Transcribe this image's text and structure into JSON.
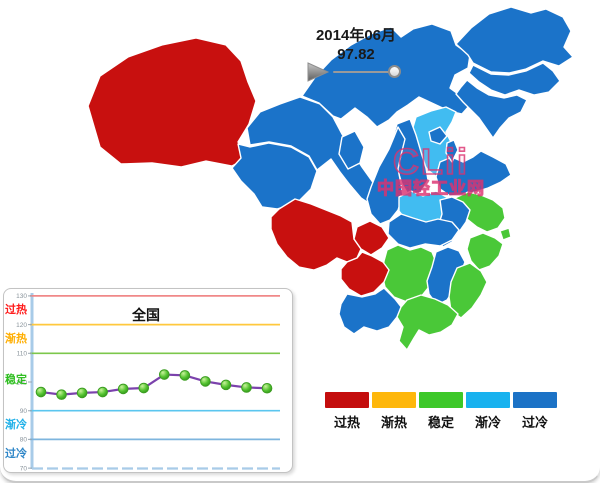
{
  "header": {
    "period": "2014年06月",
    "index_value": "97.82"
  },
  "watermark": {
    "logo": "CLii",
    "site_name": "中国轻工业网"
  },
  "legend": {
    "items": [
      {
        "label": "过热",
        "color": "#C40D0D"
      },
      {
        "label": "渐热",
        "color": "#FEB70B"
      },
      {
        "label": "稳定",
        "color": "#3DC829"
      },
      {
        "label": "渐冷",
        "color": "#18B2EF"
      },
      {
        "label": "过冷",
        "color": "#1B72C6"
      }
    ]
  },
  "trend_panel": {
    "title": "全国",
    "zone_labels": [
      {
        "label": "过热",
        "color": "#FF1A1A"
      },
      {
        "label": "渐热",
        "color": "#FFAE00"
      },
      {
        "label": "稳定",
        "color": "#2FBE20"
      },
      {
        "label": "渐冷",
        "color": "#1FB0E8"
      },
      {
        "label": "过冷",
        "color": "#2E86C8"
      }
    ]
  },
  "map": {
    "nodata_stroke": "#B9D5EC",
    "status_colors": {
      "过热": "#C8100F",
      "渐热": "#FEB70B",
      "稳定": "#4AC838",
      "渐冷": "#41BCF1",
      "过冷": "#1B73C9",
      "无数据": "#FFFFFF"
    }
  },
  "chart_data": [
    {
      "type": "choropleth",
      "title": "中国分省景气地图 2014年06月",
      "legend_labels": [
        "过热",
        "渐热",
        "稳定",
        "渐冷",
        "过冷"
      ],
      "regions": [
        {
          "id": "xinjiang",
          "name": "新疆",
          "status": "过热"
        },
        {
          "id": "xizang",
          "name": "西藏",
          "status": "无数据"
        },
        {
          "id": "qinghai",
          "name": "青海",
          "status": "过冷"
        },
        {
          "id": "gansu",
          "name": "甘肃",
          "status": "过冷"
        },
        {
          "id": "ningxia",
          "name": "宁夏",
          "status": "过冷"
        },
        {
          "id": "neimenggu",
          "name": "内蒙古",
          "status": "过冷"
        },
        {
          "id": "heilongjiang",
          "name": "黑龙江",
          "status": "过冷"
        },
        {
          "id": "jilin",
          "name": "吉林",
          "status": "过冷"
        },
        {
          "id": "liaoning",
          "name": "辽宁",
          "status": "过冷"
        },
        {
          "id": "hebei",
          "name": "河北",
          "status": "渐冷"
        },
        {
          "id": "beijing",
          "name": "北京",
          "status": "过冷"
        },
        {
          "id": "tianjin",
          "name": "天津",
          "status": "过冷"
        },
        {
          "id": "shanxi",
          "name": "山西",
          "status": "过冷"
        },
        {
          "id": "shandong",
          "name": "山东",
          "status": "过冷"
        },
        {
          "id": "henan",
          "name": "河南",
          "status": "渐冷"
        },
        {
          "id": "shaanxi",
          "name": "陕西",
          "status": "过冷"
        },
        {
          "id": "hubei",
          "name": "湖北",
          "status": "过冷"
        },
        {
          "id": "anhui",
          "name": "安徽",
          "status": "过冷"
        },
        {
          "id": "jiangsu",
          "name": "江苏",
          "status": "稳定"
        },
        {
          "id": "shanghai",
          "name": "上海",
          "status": "稳定"
        },
        {
          "id": "zhejiang",
          "name": "浙江",
          "status": "稳定"
        },
        {
          "id": "fujian",
          "name": "福建",
          "status": "稳定"
        },
        {
          "id": "jiangxi",
          "name": "江西",
          "status": "过冷"
        },
        {
          "id": "hunan",
          "name": "湖南",
          "status": "稳定"
        },
        {
          "id": "guangdong",
          "name": "广东",
          "status": "稳定"
        },
        {
          "id": "guangxi",
          "name": "广西",
          "status": "过冷"
        },
        {
          "id": "guizhou",
          "name": "贵州",
          "status": "过热"
        },
        {
          "id": "chongqing",
          "name": "重庆",
          "status": "过热"
        },
        {
          "id": "sichuan",
          "name": "四川",
          "status": "过热"
        },
        {
          "id": "yunnan",
          "name": "云南",
          "status": "无数据"
        },
        {
          "id": "hainan",
          "name": "海南",
          "status": "无数据"
        },
        {
          "id": "taiwan",
          "name": "台湾",
          "status": "无数据"
        }
      ]
    },
    {
      "type": "line",
      "title": "全国",
      "current_value": 97.82,
      "values": [
        96.5,
        95.6,
        96.2,
        96.5,
        97.6,
        97.9,
        102.6,
        102.3,
        100.2,
        99.0,
        98.1,
        97.82
      ],
      "yticks": [
        130,
        120,
        110,
        100,
        90,
        80,
        70
      ],
      "ylim": [
        70,
        130
      ],
      "ref_lines": [
        {
          "value": 130,
          "color": "#F08888"
        },
        {
          "value": 120,
          "color": "#FFC83D"
        },
        {
          "value": 110,
          "color": "#7CC74B"
        },
        {
          "value": 90,
          "color": "#5BC6EF"
        },
        {
          "value": 80,
          "color": "#7EB5DE"
        }
      ],
      "line_color": "#7B42AC",
      "marker_color": "#4CB52E",
      "legend_position": "none",
      "grid": "horizontal-threshold-lines"
    }
  ]
}
